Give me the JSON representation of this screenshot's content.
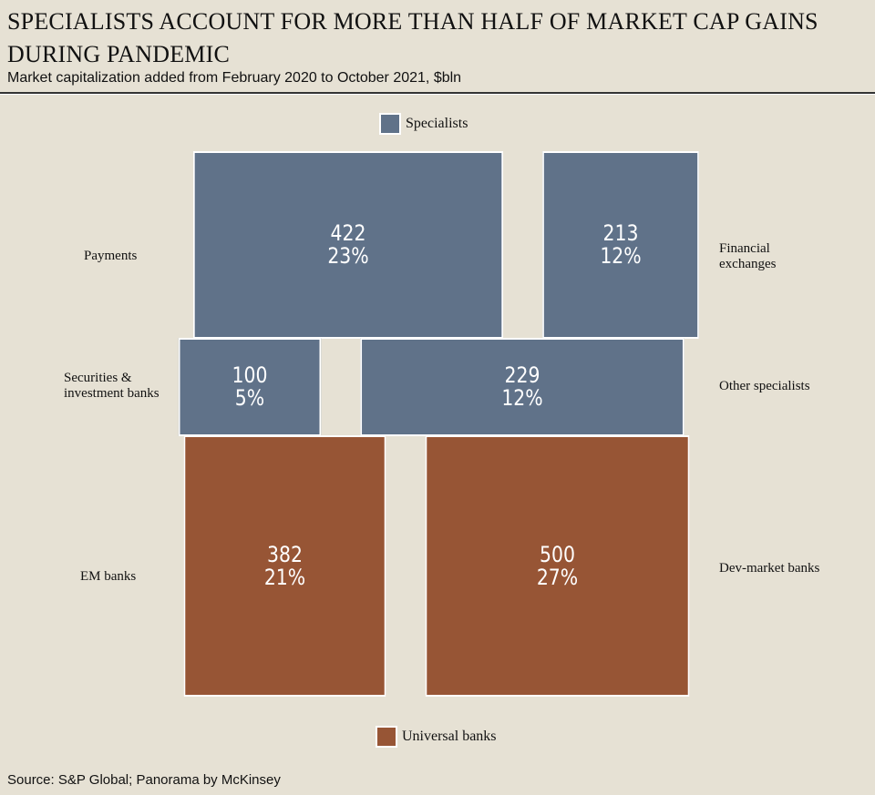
{
  "chart_data": {
    "type": "treemap",
    "title": "SPECIALISTS ACCOUNT FOR MORE THAN HALF OF MARKET CAP GAINS DURING PANDEMIC",
    "subtitle": "Market capitalization added from February 2020 to October 2021, $bln",
    "legend": [
      {
        "name": "Specialists",
        "color": "#607289"
      },
      {
        "name": "Universal banks",
        "color": "#975535"
      }
    ],
    "items": [
      {
        "name": "Payments",
        "group": "Specialists",
        "value": "422",
        "pct": "23%"
      },
      {
        "name": "Financial exchanges",
        "group": "Specialists",
        "value": "213",
        "pct": "12%"
      },
      {
        "name": "Securities & investment banks",
        "group": "Specialists",
        "value": "100",
        "pct": "5%"
      },
      {
        "name": "Other specialists",
        "group": "Specialists",
        "value": "229",
        "pct": "12%"
      },
      {
        "name": "EM banks",
        "group": "Universal banks",
        "value": "382",
        "pct": "21%"
      },
      {
        "name": "Dev-market banks",
        "group": "Universal banks",
        "value": "500",
        "pct": "27%"
      }
    ],
    "source": "Source: S&P Global; Panorama by McKinsey"
  }
}
